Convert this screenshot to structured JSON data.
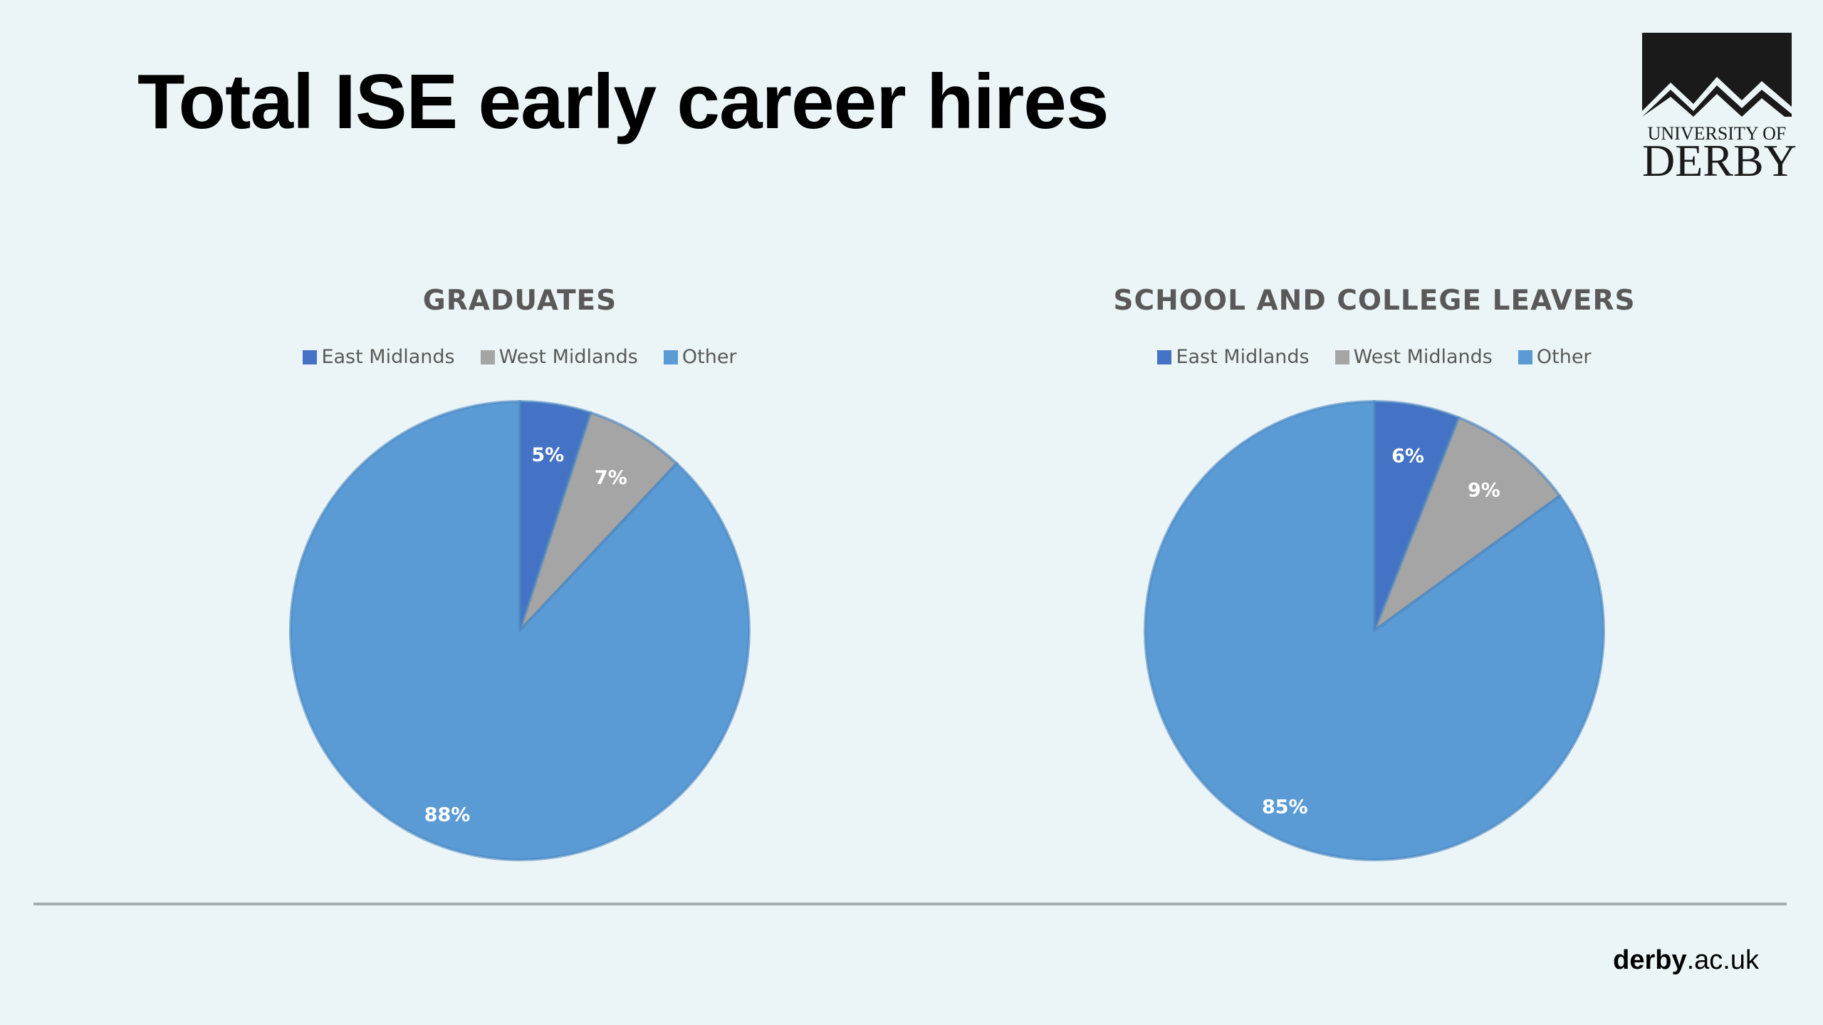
{
  "slide": {
    "title": "Total ISE early career hires",
    "logo": {
      "line1": "UNIVERSITY OF",
      "line2": "DERBY"
    },
    "footer": {
      "domain_bold": "derby",
      "domain_rest": ".ac.uk"
    }
  },
  "colors": {
    "background": "#ebf5f7",
    "east_midlands": "#4472c4",
    "west_midlands": "#a5a5a5",
    "other": "#5b9bd5"
  },
  "chart_data": [
    {
      "type": "pie",
      "title": "GRADUATES",
      "legend_position": "top",
      "categories": [
        "East Midlands",
        "West Midlands",
        "Other"
      ],
      "values": [
        5,
        7,
        88
      ],
      "labels": [
        "5%",
        "7%",
        "88%"
      ],
      "colors": [
        "#4472c4",
        "#a5a5a5",
        "#5b9bd5"
      ]
    },
    {
      "type": "pie",
      "title": "SCHOOL AND COLLEGE LEAVERS",
      "legend_position": "top",
      "categories": [
        "East Midlands",
        "West Midlands",
        "Other"
      ],
      "values": [
        6,
        9,
        85
      ],
      "labels": [
        "6%",
        "9%",
        "85%"
      ],
      "colors": [
        "#4472c4",
        "#a5a5a5",
        "#5b9bd5"
      ]
    }
  ]
}
